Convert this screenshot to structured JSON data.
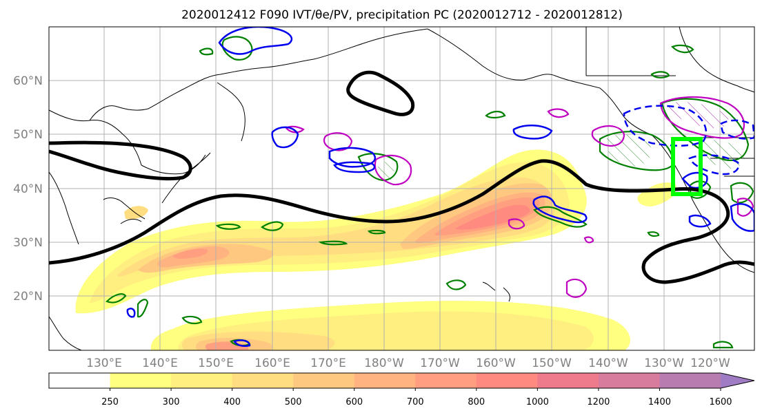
{
  "title": "2020012412 F090 IVT/θe/PV, precipitation PC (2020012712 - 2020012812)",
  "map": {
    "lon_labels": [
      "130°E",
      "140°E",
      "150°E",
      "160°E",
      "170°E",
      "180°W",
      "170°W",
      "160°W",
      "150°W",
      "140°W",
      "130°W",
      "120°W"
    ],
    "lat_labels": [
      "60°N",
      "50°N",
      "40°N",
      "30°N",
      "20°N"
    ],
    "extent": {
      "lon_west": 120,
      "lon_east": -110,
      "lat_south": 10,
      "lat_north": 70
    },
    "gridlines": true,
    "highlight_box_color": "#00ff00"
  },
  "colorbar": {
    "levels": [
      "250",
      "300",
      "400",
      "500",
      "600",
      "700",
      "800",
      "1000",
      "1200",
      "1400",
      "1600"
    ],
    "colors": [
      "#ffffff",
      "#ffff80",
      "#ffee80",
      "#ffdd80",
      "#ffc880",
      "#ffb380",
      "#ff9f80",
      "#ff8a80",
      "#ee7b8c",
      "#d77c9c",
      "#b87cb0",
      "#a07cc4"
    ],
    "extend": "max"
  },
  "contour_colors": {
    "theta_e": "#000000",
    "pv": "#0000ee",
    "precip_low": "#008000",
    "precip_high": "#c000c0"
  }
}
